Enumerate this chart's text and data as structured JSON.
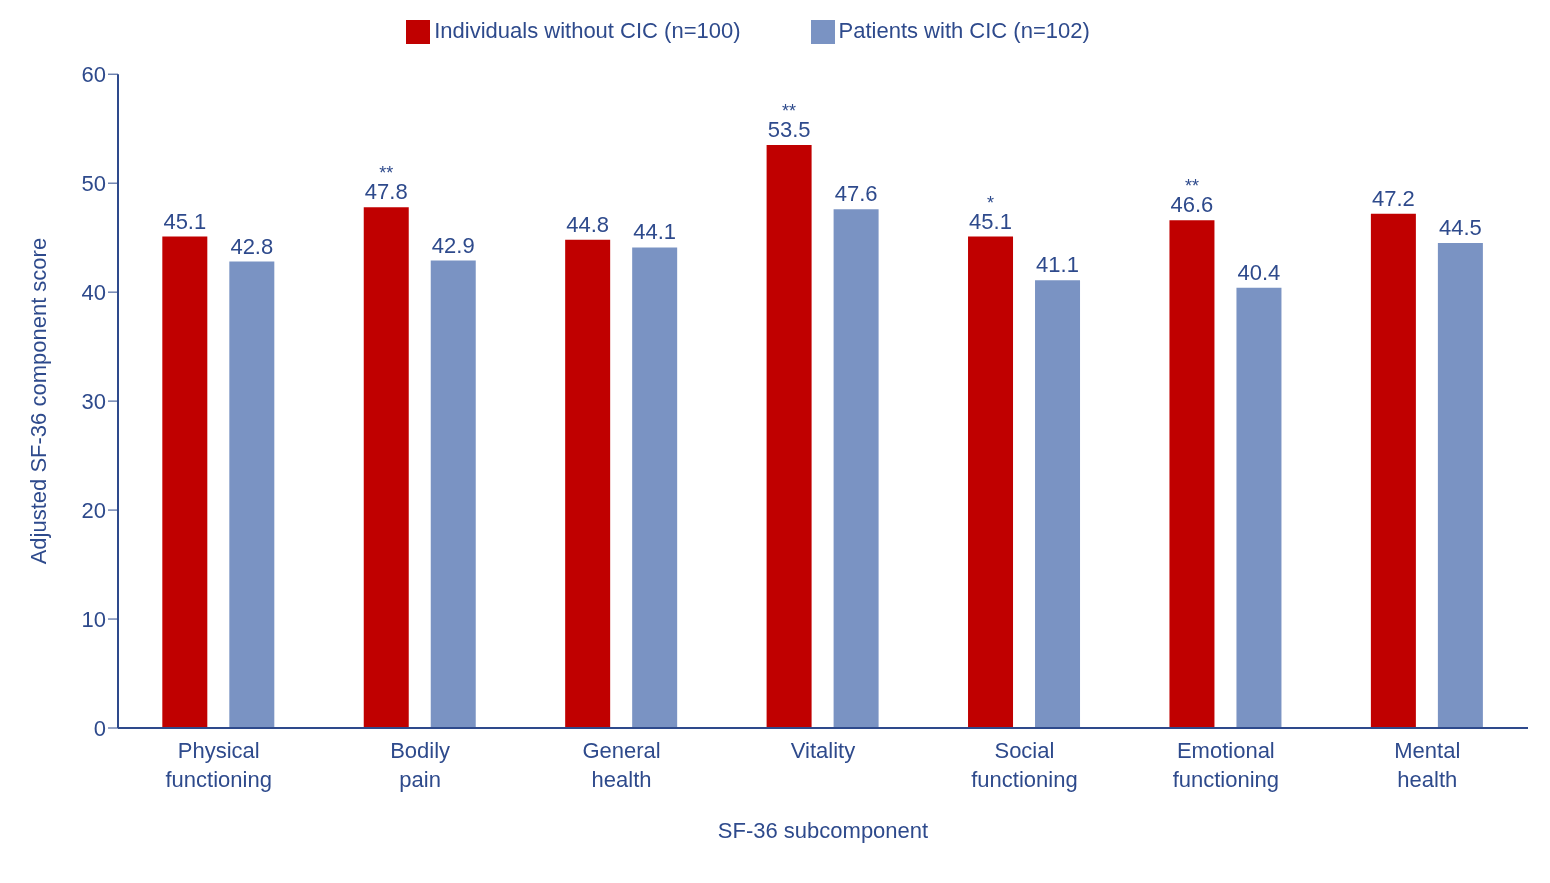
{
  "chart_data": {
    "type": "bar",
    "xlabel": "SF-36 subcomponent",
    "ylabel": "Adjusted SF-36 component score",
    "categories": [
      "Physical functioning",
      "Bodily pain",
      "General health",
      "Vitality",
      "Social functioning",
      "Emotional functioning",
      "Mental health"
    ],
    "series": [
      {
        "name": "Individuals without CIC (n=100)",
        "color": "#c00000",
        "values": [
          45.1,
          47.8,
          44.8,
          53.5,
          45.1,
          46.6,
          47.2
        ]
      },
      {
        "name": "Patients with CIC (n=102)",
        "color": "#7a93c3",
        "values": [
          42.8,
          42.9,
          44.1,
          47.6,
          41.1,
          40.4,
          44.5
        ]
      }
    ],
    "ylim": [
      0,
      60
    ],
    "yticks": [
      0,
      10,
      20,
      30,
      40,
      50,
      60
    ],
    "grid": false,
    "legend": "top",
    "data_labels": true,
    "annotations": [
      "**",
      "**",
      "*",
      "**"
    ]
  }
}
